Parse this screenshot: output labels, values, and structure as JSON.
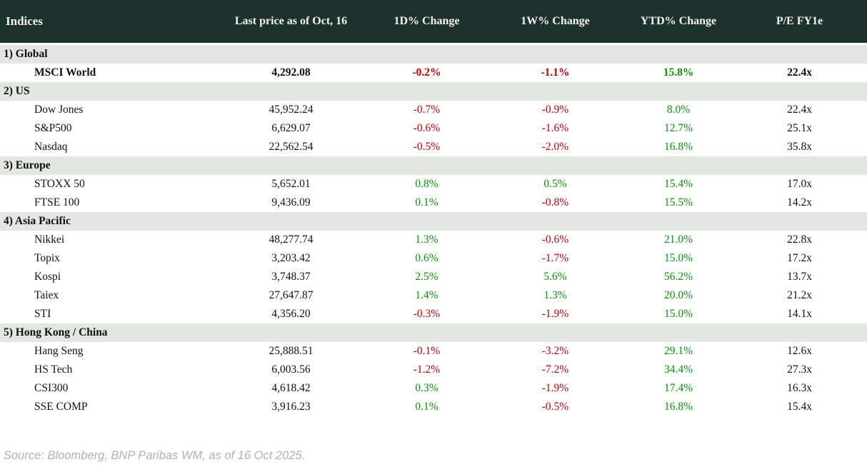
{
  "colors": {
    "header_background": "#1e322d",
    "header_text": "#f3f2ed",
    "section_background": "#e2e7e2",
    "positive": "#079307",
    "negative": "#c40000",
    "body_text": "#111111",
    "source_text": "#a9b3bb"
  },
  "chart_data": {
    "type": "table",
    "title": "Indices",
    "columns": [
      "Indices",
      "Last price as of Oct, 16",
      "1D% Change",
      "1W% Change",
      "YTD% Change",
      "P/E FY1e"
    ],
    "sections": [
      {
        "label": "1) Global",
        "rows": [
          {
            "name": "MSCI World",
            "price": "4,292.08",
            "chg_1d": "-0.2%",
            "chg_1w": "-1.1%",
            "chg_ytd": "15.8%",
            "pe": "22.4x",
            "emphasis": true
          }
        ]
      },
      {
        "label": "2) US",
        "rows": [
          {
            "name": "Dow Jones",
            "price": "45,952.24",
            "chg_1d": "-0.7%",
            "chg_1w": "-0.9%",
            "chg_ytd": "8.0%",
            "pe": "22.4x"
          },
          {
            "name": "S&P500",
            "price": "6,629.07",
            "chg_1d": "-0.6%",
            "chg_1w": "-1.6%",
            "chg_ytd": "12.7%",
            "pe": "25.1x"
          },
          {
            "name": "Nasdaq",
            "price": "22,562.54",
            "chg_1d": "-0.5%",
            "chg_1w": "-2.0%",
            "chg_ytd": "16.8%",
            "pe": "35.8x"
          }
        ]
      },
      {
        "label": "3) Europe",
        "rows": [
          {
            "name": "STOXX 50",
            "price": "5,652.01",
            "chg_1d": "0.8%",
            "chg_1w": "0.5%",
            "chg_ytd": "15.4%",
            "pe": "17.0x"
          },
          {
            "name": "FTSE 100",
            "price": "9,436.09",
            "chg_1d": "0.1%",
            "chg_1w": "-0.8%",
            "chg_ytd": "15.5%",
            "pe": "14.2x"
          }
        ]
      },
      {
        "label": "4) Asia Pacific",
        "rows": [
          {
            "name": "Nikkei",
            "price": "48,277.74",
            "chg_1d": "1.3%",
            "chg_1w": "-0.6%",
            "chg_ytd": "21.0%",
            "pe": "22.8x"
          },
          {
            "name": "Topix",
            "price": "3,203.42",
            "chg_1d": "0.6%",
            "chg_1w": "-1.7%",
            "chg_ytd": "15.0%",
            "pe": "17.2x"
          },
          {
            "name": "Kospi",
            "price": "3,748.37",
            "chg_1d": "2.5%",
            "chg_1w": "5.6%",
            "chg_ytd": "56.2%",
            "pe": "13.7x"
          },
          {
            "name": "Taiex",
            "price": "27,647.87",
            "chg_1d": "1.4%",
            "chg_1w": "1.3%",
            "chg_ytd": "20.0%",
            "pe": "21.2x"
          },
          {
            "name": "STI",
            "price": "4,356.20",
            "chg_1d": "-0.3%",
            "chg_1w": "-1.9%",
            "chg_ytd": "15.0%",
            "pe": "14.1x"
          }
        ]
      },
      {
        "label": "5) Hong Kong / China",
        "rows": [
          {
            "name": "Hang Seng",
            "price": "25,888.51",
            "chg_1d": "-0.1%",
            "chg_1w": "-3.2%",
            "chg_ytd": "29.1%",
            "pe": "12.6x"
          },
          {
            "name": "HS Tech",
            "price": "6,003.56",
            "chg_1d": "-1.2%",
            "chg_1w": "-7.2%",
            "chg_ytd": "34.4%",
            "pe": "27.3x"
          },
          {
            "name": "CSI300",
            "price": "4,618.42",
            "chg_1d": "0.3%",
            "chg_1w": "-1.9%",
            "chg_ytd": "17.4%",
            "pe": "16.3x"
          },
          {
            "name": "SSE COMP",
            "price": "3,916.23",
            "chg_1d": "0.1%",
            "chg_1w": "-0.5%",
            "chg_ytd": "16.8%",
            "pe": "15.4x"
          }
        ]
      }
    ]
  },
  "footer": {
    "source_note": "Source: Bloomberg, BNP Paribas WM, as of 16 Oct 2025."
  }
}
